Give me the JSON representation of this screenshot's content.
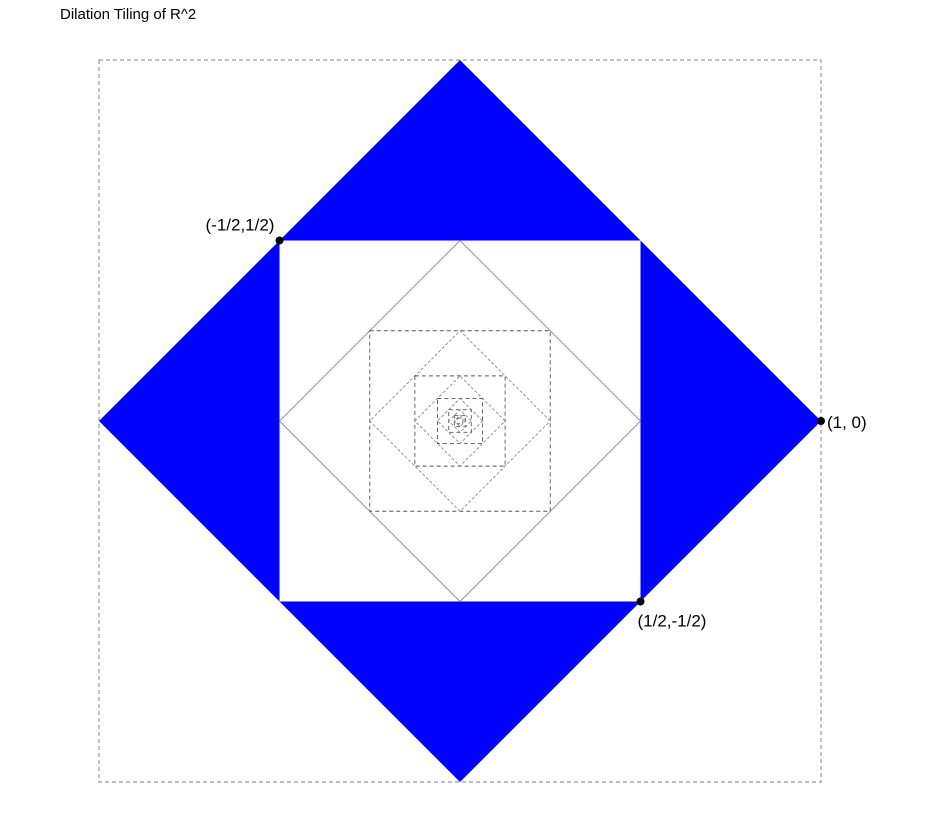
{
  "title": "Dilation Tiling of R^2",
  "colors": {
    "fill": "#0000ff",
    "background": "#ffffff",
    "frame": "#999999",
    "nested_square": "#555555",
    "nested_diamond": "#888888",
    "point": "#000000"
  },
  "diagram": {
    "coordinate_range": [
      -1,
      1
    ],
    "outer_diamond_vertices": [
      [
        1,
        0
      ],
      [
        0,
        1
      ],
      [
        -1,
        0
      ],
      [
        0,
        -1
      ]
    ],
    "inner_square_half_width": 0.5,
    "nesting_ratio": 0.5,
    "nested_levels": 6
  },
  "points": [
    {
      "id": "p1",
      "x": -0.5,
      "y": 0.5,
      "label": "(-1/2,1/2)",
      "anchor": "above-right"
    },
    {
      "id": "p2",
      "x": 1,
      "y": 0,
      "label": "(1, 0)",
      "anchor": "right"
    },
    {
      "id": "p3",
      "x": 0.5,
      "y": -0.5,
      "label": "(1/2,-1/2)",
      "anchor": "below-right"
    }
  ]
}
